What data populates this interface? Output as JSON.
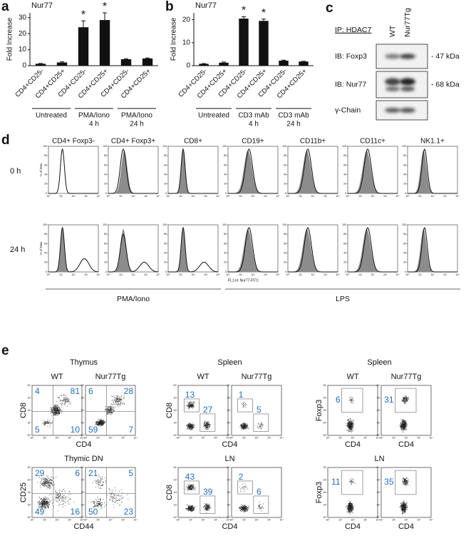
{
  "chart_data": [
    {
      "type": "bar",
      "panel": "a",
      "title": "Nur77",
      "ylabel": "Fold Increase",
      "categories": [
        "CD4+CD25-",
        "CD4+CD25+",
        "CD4+CD25-",
        "CD4+CD25+",
        "CD4+CD25-",
        "CD4+CD25+"
      ],
      "values": [
        1.2,
        2,
        24,
        28.5,
        4,
        4.5
      ],
      "errors": [
        0.2,
        0.4,
        4,
        4.5,
        0.3,
        0.3
      ],
      "significance": [
        null,
        null,
        "*",
        "*",
        null,
        null
      ],
      "groups": [
        [
          "Untreated"
        ],
        [
          "PMA/Iono",
          "4 h"
        ],
        [
          "PMA/Iono",
          "24 h"
        ]
      ],
      "color": "#111111",
      "ylim": [
        0,
        33
      ],
      "yticks": [
        0,
        10,
        20,
        30
      ]
    },
    {
      "type": "bar",
      "panel": "b",
      "title": "Nur77",
      "ylabel": "Fold Increase",
      "categories": [
        "CD4+CD25-",
        "CD4+CD25+",
        "CD4+CD25-",
        "CD4+CD25+",
        "CD4+CD25-",
        "CD4+CD25+"
      ],
      "values": [
        0.8,
        1.3,
        20.5,
        19.5,
        2.2,
        1.8
      ],
      "errors": [
        0.1,
        0.3,
        0.8,
        0.8,
        0.2,
        0.1
      ],
      "significance": [
        null,
        null,
        "*",
        "*",
        null,
        null
      ],
      "groups": [
        [
          "Untreated"
        ],
        [
          "CD3 mAb",
          "4 h"
        ],
        [
          "CD3 mAb",
          "24 h"
        ]
      ],
      "color": "#111111",
      "ylim": [
        0,
        23
      ],
      "yticks": [
        0,
        10,
        20
      ]
    }
  ],
  "blot": {
    "panel": "c",
    "ip": "IP: HDAC7",
    "lanes": [
      "WT",
      "Nur77Tg"
    ],
    "rows": [
      {
        "label": "IB: Foxp3",
        "size": "- 47 kDa"
      },
      {
        "label": "IB: Nur77",
        "size": "- 68 kDa"
      },
      {
        "label": "γ-Chain"
      }
    ]
  },
  "histograms": {
    "panel": "d",
    "columns": [
      "CD4+ Foxp3-",
      "CD4+ Foxp3+",
      "CD8+",
      "CD19+",
      "CD11b+",
      "CD11c+",
      "NK1.1+"
    ],
    "rows": [
      "0 h",
      "24 h"
    ],
    "ylabel": "% of Max",
    "xlabel": "FL1-H: Nur77-FITC",
    "yticks": [
      0,
      20,
      40,
      60,
      80,
      100
    ],
    "xticks": [
      "10⁰",
      "10¹",
      "10²",
      "10³",
      "10⁴"
    ],
    "treatments": [
      "PMA/Iono",
      "LPS"
    ]
  },
  "dotplots": {
    "panel": "e",
    "ticks": [
      "10⁰",
      "10¹",
      "10²",
      "10³",
      "10⁴"
    ],
    "groups": [
      {
        "title": "Thymus",
        "subtitles": [
          "WT",
          "Nur77Tg"
        ],
        "ylabel": "CD8",
        "xlabel": "CD4",
        "samples": [
          [
            4,
            81,
            5,
            10
          ],
          [
            6,
            28,
            59,
            7
          ]
        ]
      },
      {
        "title": "Spleen",
        "subtitles": [
          "WT",
          "Nur77Tg"
        ],
        "ylabel": "CD8",
        "xlabel": "CD4",
        "samples": [
          [
            13,
            27
          ],
          [
            1,
            5
          ]
        ]
      },
      {
        "title": "Spleen",
        "subtitles": [
          "WT",
          "Nur77Tg"
        ],
        "ylabel": "Foxp3",
        "xlabels": [
          "CD4",
          "CD4"
        ],
        "samples": [
          [
            6
          ],
          [
            31
          ]
        ]
      },
      {
        "title": "Thymic DN",
        "ylabel": "CD25",
        "xlabel": "CD44",
        "samples": [
          [
            29,
            6,
            49,
            16
          ],
          [
            21,
            5,
            50,
            23
          ]
        ]
      },
      {
        "title": "LN",
        "ylabel": "CD8",
        "xlabel": "CD4",
        "samples": [
          [
            43,
            39
          ],
          [
            2,
            6
          ]
        ]
      },
      {
        "title": "LN",
        "ylabel": "Foxp3",
        "xlabels": [
          "CD4",
          "CD4"
        ],
        "samples": [
          [
            11
          ],
          [
            35
          ]
        ]
      }
    ]
  }
}
